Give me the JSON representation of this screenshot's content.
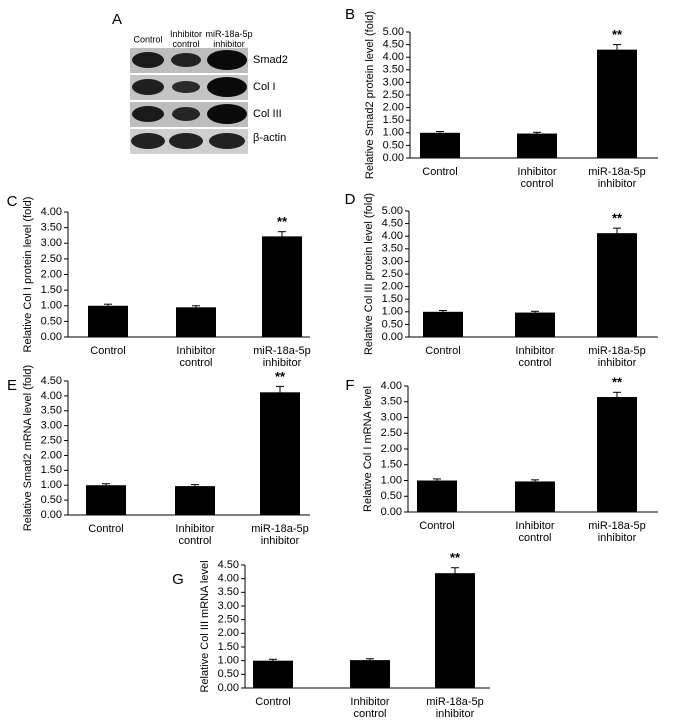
{
  "blot": {
    "panel": "A",
    "columns": [
      "Control",
      "Inhibitor control",
      "miR-18a-5p inhibitor"
    ],
    "rows": [
      "Smad2",
      "Col I",
      "Col III",
      "β-actin"
    ]
  },
  "chart_data": [
    {
      "type": "bar",
      "panel": "B",
      "ylabel": "Relative Smad2 protein level (fold)",
      "categories": [
        "Control",
        "Inhibitor control",
        "miR-18a-5p inhibitor"
      ],
      "values": [
        1.0,
        0.97,
        4.3
      ],
      "errors": [
        0.05,
        0.05,
        0.2
      ],
      "color": "#000000",
      "annotations": [
        {
          "index": 2,
          "text": "**"
        }
      ],
      "ylim": [
        0,
        5
      ],
      "yticks": [
        {
          "value": 0,
          "label": "0.00"
        },
        {
          "value": 0.5,
          "label": "0.50"
        },
        {
          "value": 1,
          "label": "1.00"
        },
        {
          "value": 1.5,
          "label": "1.50"
        },
        {
          "value": 2,
          "label": "2.00"
        },
        {
          "value": 2.5,
          "label": "2.50"
        },
        {
          "value": 3,
          "label": "3.00"
        },
        {
          "value": 3.5,
          "label": "3.50"
        },
        {
          "value": 4,
          "label": "4.00"
        },
        {
          "value": 4.5,
          "label": "4.50"
        },
        {
          "value": 5,
          "label": "5.00"
        }
      ]
    },
    {
      "type": "bar",
      "panel": "C",
      "ylabel": "Relative Col I protein level (fold)",
      "categories": [
        "Control",
        "Inhibitor control",
        "miR-18a-5p inhibitor"
      ],
      "values": [
        1.0,
        0.95,
        3.22
      ],
      "errors": [
        0.05,
        0.05,
        0.15
      ],
      "color": "#000000",
      "annotations": [
        {
          "index": 2,
          "text": "**"
        }
      ],
      "ylim": [
        0,
        4
      ],
      "yticks": [
        {
          "value": 0,
          "label": "0.00"
        },
        {
          "value": 0.5,
          "label": "0.50"
        },
        {
          "value": 1,
          "label": "1.00"
        },
        {
          "value": 1.5,
          "label": "1.50"
        },
        {
          "value": 2,
          "label": "2.00"
        },
        {
          "value": 2.5,
          "label": "2.50"
        },
        {
          "value": 3,
          "label": "3.00"
        },
        {
          "value": 3.5,
          "label": "3.50"
        },
        {
          "value": 4,
          "label": "4.00"
        }
      ]
    },
    {
      "type": "bar",
      "panel": "D",
      "ylabel": "Relative Col III protein level (fold)",
      "categories": [
        "Control",
        "Inhibitor control",
        "miR-18a-5p inhibitor"
      ],
      "values": [
        1.0,
        0.97,
        4.12
      ],
      "errors": [
        0.05,
        0.05,
        0.2
      ],
      "color": "#000000",
      "annotations": [
        {
          "index": 2,
          "text": "**"
        }
      ],
      "ylim": [
        0,
        5
      ],
      "yticks": [
        {
          "value": 0,
          "label": "0.00"
        },
        {
          "value": 0.5,
          "label": "0.50"
        },
        {
          "value": 1,
          "label": "1.00"
        },
        {
          "value": 1.5,
          "label": "1.50"
        },
        {
          "value": 2,
          "label": "2.00"
        },
        {
          "value": 2.5,
          "label": "2.50"
        },
        {
          "value": 3,
          "label": "3.00"
        },
        {
          "value": 3.5,
          "label": "3.50"
        },
        {
          "value": 4,
          "label": "4.00"
        },
        {
          "value": 4.5,
          "label": "4.50"
        },
        {
          "value": 5,
          "label": "5.00"
        }
      ]
    },
    {
      "type": "bar",
      "panel": "E",
      "ylabel": "Relative Smad2 mRNA level (fold)",
      "categories": [
        "Control",
        "Inhibitor control",
        "miR-18a-5p inhibitor"
      ],
      "values": [
        1.0,
        0.97,
        4.12
      ],
      "errors": [
        0.05,
        0.05,
        0.2
      ],
      "color": "#000000",
      "annotations": [
        {
          "index": 2,
          "text": "**"
        }
      ],
      "ylim": [
        0,
        4.5
      ],
      "yticks": [
        {
          "value": 0,
          "label": "0.00"
        },
        {
          "value": 0.5,
          "label": "0.50"
        },
        {
          "value": 1,
          "label": "1.00"
        },
        {
          "value": 1.5,
          "label": "1.50"
        },
        {
          "value": 2,
          "label": "2.00"
        },
        {
          "value": 2.5,
          "label": "2.50"
        },
        {
          "value": 3,
          "label": "3.00"
        },
        {
          "value": 3.5,
          "label": "3.50"
        },
        {
          "value": 4,
          "label": "4.00"
        },
        {
          "value": 4.5,
          "label": "4.50"
        }
      ]
    },
    {
      "type": "bar",
      "panel": "F",
      "ylabel": "Relative Col I mRNA level",
      "categories": [
        "Control",
        "Inhibitor control",
        "miR-18a-5p inhibitor"
      ],
      "values": [
        1.0,
        0.97,
        3.65
      ],
      "errors": [
        0.05,
        0.05,
        0.15
      ],
      "color": "#000000",
      "annotations": [
        {
          "index": 2,
          "text": "**"
        }
      ],
      "ylim": [
        0,
        4
      ],
      "yticks": [
        {
          "value": 0,
          "label": "0.00"
        },
        {
          "value": 0.5,
          "label": "0.50"
        },
        {
          "value": 1,
          "label": "1.00"
        },
        {
          "value": 1.5,
          "label": "1.50"
        },
        {
          "value": 2,
          "label": "2.00"
        },
        {
          "value": 2.5,
          "label": "2.50"
        },
        {
          "value": 3,
          "label": "3.00"
        },
        {
          "value": 3.5,
          "label": "3.50"
        },
        {
          "value": 4,
          "label": "4.00"
        }
      ]
    },
    {
      "type": "bar",
      "panel": "G",
      "ylabel": "Relative Col III mRNA level",
      "categories": [
        "Control",
        "Inhibitor control",
        "miR-18a-5p inhibitor"
      ],
      "values": [
        1.0,
        1.02,
        4.2
      ],
      "errors": [
        0.05,
        0.05,
        0.2
      ],
      "color": "#000000",
      "annotations": [
        {
          "index": 2,
          "text": "**"
        }
      ],
      "ylim": [
        0,
        4.5
      ],
      "yticks": [
        {
          "value": 0,
          "label": "0.00"
        },
        {
          "value": 0.5,
          "label": "0.50"
        },
        {
          "value": 1,
          "label": "1.00"
        },
        {
          "value": 1.5,
          "label": "1.50"
        },
        {
          "value": 2,
          "label": "2.00"
        },
        {
          "value": 2.5,
          "label": "2.50"
        },
        {
          "value": 3,
          "label": "3.00"
        },
        {
          "value": 3.5,
          "label": "3.50"
        },
        {
          "value": 4,
          "label": "4.00"
        },
        {
          "value": 4.5,
          "label": "4.50"
        }
      ]
    }
  ]
}
